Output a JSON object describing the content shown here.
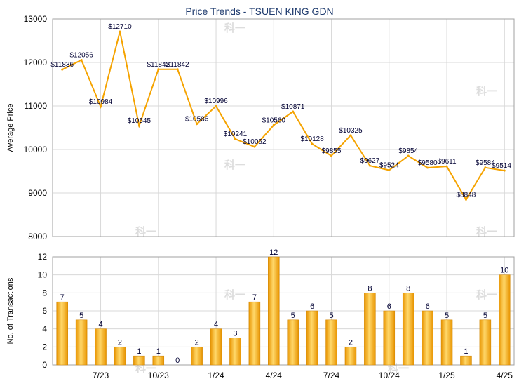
{
  "chart_data": [
    {
      "type": "line",
      "title": "Price Trends - TSUEN KING GDN",
      "ylabel": "Average Price",
      "ylim": [
        8000,
        13000
      ],
      "yticks": [
        8000,
        9000,
        10000,
        11000,
        12000,
        13000
      ],
      "color": "#f5a300",
      "values": [
        11836,
        12056,
        10984,
        12710,
        10545,
        11842,
        11842,
        10586,
        10996,
        10241,
        10062,
        10560,
        10871,
        10128,
        9855,
        10325,
        9627,
        9524,
        9854,
        9580,
        9611,
        8848,
        9584,
        9514
      ],
      "labels": [
        "$11836",
        "$12056",
        "$10984",
        "$12710",
        "$10545",
        "$11842",
        "$11842",
        "$10586",
        "$10996",
        "$10241",
        "$10062",
        "$10560",
        "$10871",
        "$10128",
        "$9855",
        "$10325",
        "$9627",
        "$9524",
        "$9854",
        "$9580",
        "$9611",
        "$8848",
        "$9584",
        "$9514"
      ]
    },
    {
      "type": "bar",
      "ylabel": "No. of Transactions",
      "ylim": [
        0,
        12
      ],
      "yticks": [
        0,
        2,
        4,
        6,
        8,
        10,
        12
      ],
      "color": "#f5a300",
      "values": [
        7,
        5,
        4,
        2,
        1,
        1,
        0,
        2,
        4,
        3,
        7,
        12,
        5,
        6,
        5,
        2,
        8,
        6,
        8,
        6,
        5,
        1,
        5,
        10
      ],
      "xtick_labels": [
        "7/23",
        "10/23",
        "1/24",
        "4/24",
        "7/24",
        "10/24",
        "1/25",
        "4/25"
      ],
      "xtick_index": [
        2,
        5,
        8,
        11,
        14,
        17,
        20,
        23
      ]
    }
  ],
  "watermark_glyph": "科一"
}
